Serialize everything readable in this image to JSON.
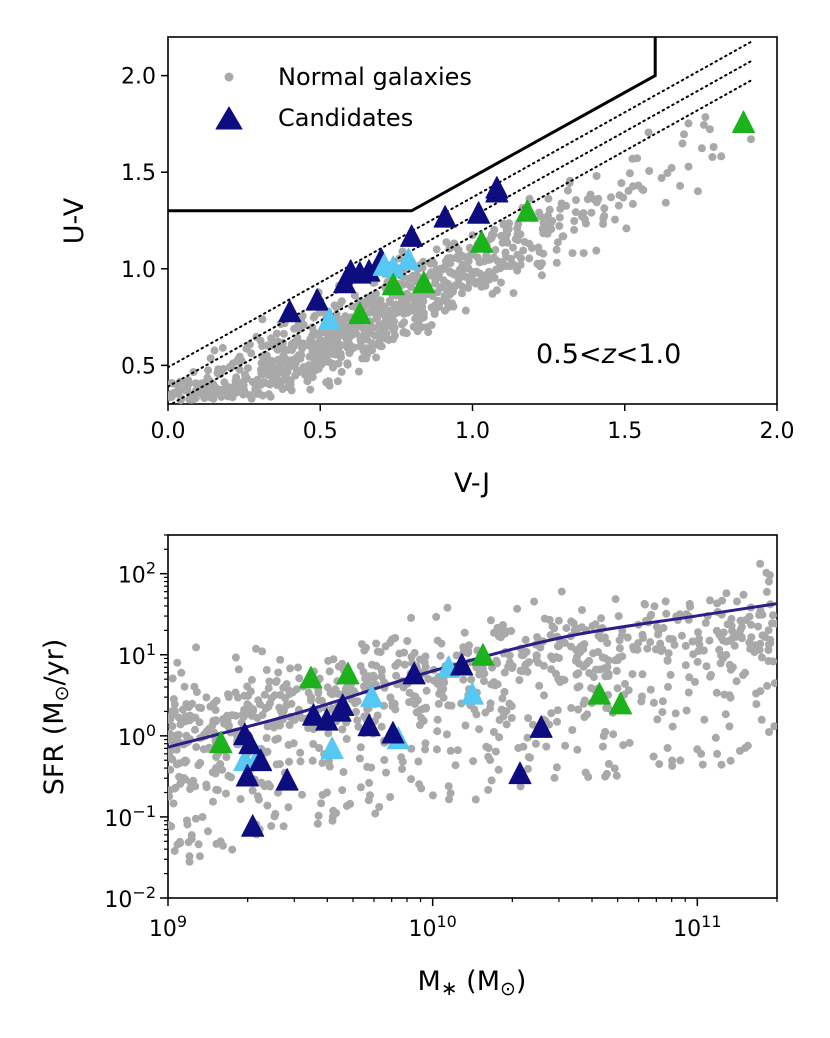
{
  "colors": {
    "normal": "#a9a9a9",
    "candidate_dark": "#0d0d80",
    "candidate_light": "#55c8f3",
    "candidate_green": "#1bb21b",
    "ms_line": "#2a1f8a",
    "boundary": "#000000"
  },
  "chart_data": [
    {
      "type": "scatter",
      "title": "",
      "xlabel": "V-J",
      "ylabel": "U-V",
      "xlim": [
        0.0,
        2.0
      ],
      "ylim": [
        0.3,
        2.2
      ],
      "xticks": [
        {
          "v": 0.0,
          "label": "0.0"
        },
        {
          "v": 0.5,
          "label": "0.5"
        },
        {
          "v": 1.0,
          "label": "1.0"
        },
        {
          "v": 1.5,
          "label": "1.5"
        },
        {
          "v": 2.0,
          "label": "2.0"
        }
      ],
      "yticks": [
        {
          "v": 0.5,
          "label": "0.5"
        },
        {
          "v": 1.0,
          "label": "1.0"
        },
        {
          "v": 1.5,
          "label": "1.5"
        },
        {
          "v": 2.0,
          "label": "2.0"
        }
      ],
      "annotation": {
        "prefix": "0.5<",
        "var": "z",
        "suffix": "<1.0"
      },
      "legend": {
        "position": "top-left",
        "entries": [
          {
            "label": "Normal galaxies",
            "marker": "circle",
            "color": "#a9a9a9"
          },
          {
            "label": "Candidates",
            "marker": "triangle",
            "color": "#0d0d80"
          }
        ]
      },
      "boundary": [
        [
          0.0,
          1.3
        ],
        [
          0.8,
          1.3
        ],
        [
          1.6,
          2.0
        ],
        [
          1.6,
          2.2
        ]
      ],
      "dotted_lines": [
        {
          "slope": 0.88,
          "intercept": 0.49
        },
        {
          "slope": 0.88,
          "intercept": 0.39
        },
        {
          "slope": 0.88,
          "intercept": 0.29
        }
      ],
      "candidates_dark": [
        [
          0.4,
          0.78
        ],
        [
          0.49,
          0.84
        ],
        [
          0.58,
          0.93
        ],
        [
          0.6,
          0.99
        ],
        [
          0.63,
          0.98
        ],
        [
          0.66,
          0.99
        ],
        [
          0.7,
          1.05
        ],
        [
          0.8,
          1.17
        ],
        [
          0.91,
          1.27
        ],
        [
          1.02,
          1.29
        ],
        [
          1.08,
          1.4
        ],
        [
          1.08,
          1.42
        ]
      ],
      "candidates_light": [
        [
          0.53,
          0.74
        ],
        [
          0.74,
          1.01
        ],
        [
          0.79,
          1.05
        ],
        [
          0.71,
          1.02
        ]
      ],
      "candidates_green": [
        [
          0.63,
          0.77
        ],
        [
          0.74,
          0.92
        ],
        [
          0.84,
          0.93
        ],
        [
          1.03,
          1.14
        ],
        [
          1.18,
          1.3
        ],
        [
          1.89,
          1.76
        ]
      ]
    },
    {
      "type": "scatter",
      "title": "",
      "xlabel": "M* (M⊙)",
      "ylabel": "SFR (M⊙/yr)",
      "xscale": "log",
      "yscale": "log",
      "xlim": [
        1000000000.0,
        200000000000.0
      ],
      "ylim": [
        0.01,
        300
      ],
      "xticks": [
        {
          "v": 9,
          "base": "10",
          "exp": "9"
        },
        {
          "v": 10,
          "base": "10",
          "exp": "10"
        },
        {
          "v": 11,
          "base": "10",
          "exp": "11"
        }
      ],
      "yticks": [
        {
          "v": -2,
          "base": "10",
          "exp": "−2"
        },
        {
          "v": -1,
          "base": "10",
          "exp": "−1"
        },
        {
          "v": 0,
          "base": "10",
          "exp": "0"
        },
        {
          "v": 1,
          "base": "10",
          "exp": "1"
        },
        {
          "v": 2,
          "base": "10",
          "exp": "2"
        }
      ],
      "ms_curve": [
        [
          9.0,
          -0.14
        ],
        [
          9.5,
          0.29
        ],
        [
          10.0,
          0.8
        ],
        [
          10.5,
          1.22
        ],
        [
          11.0,
          1.48
        ],
        [
          11.3,
          1.63
        ]
      ],
      "candidates_dark": [
        [
          9.3,
          -0.49
        ],
        [
          9.31,
          -0.09
        ],
        [
          9.32,
          -1.11
        ],
        [
          9.29,
          0.02
        ],
        [
          9.35,
          -0.3
        ],
        [
          9.45,
          -0.54
        ],
        [
          9.55,
          0.26
        ],
        [
          9.6,
          0.2
        ],
        [
          9.65,
          0.31
        ],
        [
          9.66,
          0.38
        ],
        [
          9.76,
          0.13
        ],
        [
          9.85,
          0.04
        ],
        [
          9.93,
          0.77
        ],
        [
          10.11,
          0.88
        ],
        [
          10.33,
          -0.46
        ],
        [
          10.41,
          0.11
        ]
      ],
      "candidates_light": [
        [
          9.29,
          -0.3
        ],
        [
          9.34,
          -0.25
        ],
        [
          9.62,
          -0.15
        ],
        [
          9.77,
          0.49
        ],
        [
          9.87,
          -0.03
        ],
        [
          10.15,
          0.52
        ],
        [
          10.06,
          0.85
        ]
      ],
      "candidates_green": [
        [
          9.2,
          -0.08
        ],
        [
          9.54,
          0.72
        ],
        [
          9.68,
          0.77
        ],
        [
          10.19,
          1.0
        ],
        [
          10.63,
          0.52
        ],
        [
          10.71,
          0.4
        ]
      ]
    }
  ]
}
